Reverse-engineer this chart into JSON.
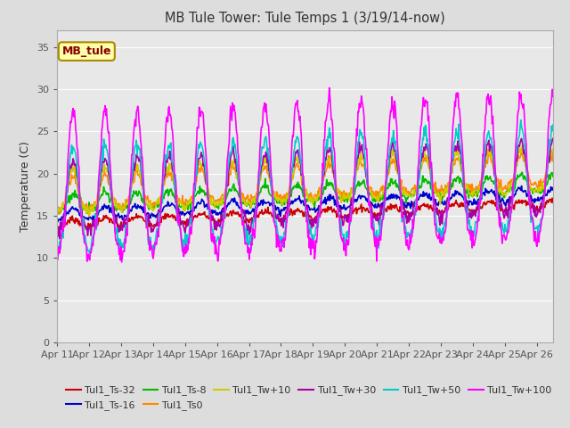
{
  "title": "MB Tule Tower: Tule Temps 1 (3/19/14-now)",
  "ylabel": "Temperature (C)",
  "ylim": [
    0,
    37
  ],
  "yticks": [
    0,
    5,
    10,
    15,
    20,
    25,
    30,
    35
  ],
  "background_color": "#dddddd",
  "plot_bg_color": "#e8e8e8",
  "legend_box_color": "#ffffaa",
  "legend_box_edge": "#aa8800",
  "series_order": [
    "Tul1_Ts-32",
    "Tul1_Ts-16",
    "Tul1_Ts-8",
    "Tul1_Ts0",
    "Tul1_Tw+10",
    "Tul1_Tw+30",
    "Tul1_Tw+50",
    "Tul1_Tw+100"
  ],
  "series": {
    "Tul1_Ts-32": {
      "color": "#cc0000",
      "lw": 1.2
    },
    "Tul1_Ts-16": {
      "color": "#0000cc",
      "lw": 1.2
    },
    "Tul1_Ts-8": {
      "color": "#00bb00",
      "lw": 1.2
    },
    "Tul1_Ts0": {
      "color": "#ff8800",
      "lw": 1.2
    },
    "Tul1_Tw+10": {
      "color": "#cccc00",
      "lw": 1.2
    },
    "Tul1_Tw+30": {
      "color": "#aa00aa",
      "lw": 1.2
    },
    "Tul1_Tw+50": {
      "color": "#00cccc",
      "lw": 1.2
    },
    "Tul1_Tw+100": {
      "color": "#ff00ff",
      "lw": 1.2
    }
  },
  "seed": 7
}
